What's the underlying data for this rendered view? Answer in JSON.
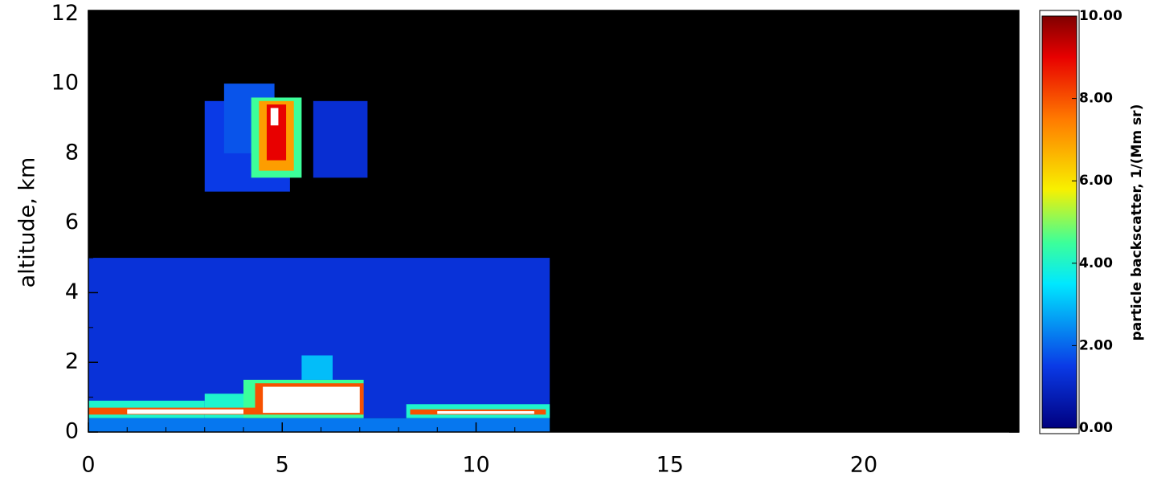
{
  "chart_data": {
    "type": "heatmap",
    "ylabel": "altitude, km",
    "colorbar_label": "particle backscatter, 1/(Mm sr)",
    "xlim": [
      0,
      24
    ],
    "ylim": [
      0,
      12.1
    ],
    "xticks": [
      0,
      5,
      10,
      15,
      20
    ],
    "x_minor_ticks": [
      1,
      2,
      3,
      4,
      6,
      7,
      8,
      9,
      11,
      12,
      13,
      14,
      16,
      17,
      18,
      19,
      21,
      22,
      23,
      24
    ],
    "yticks": [
      0,
      2,
      4,
      6,
      8,
      10,
      12
    ],
    "y_minor_ticks": [
      1,
      3,
      5,
      7,
      9,
      11
    ],
    "clim": [
      0,
      10
    ],
    "cticks": [
      {
        "value": 0,
        "label": "0.00"
      },
      {
        "value": 2,
        "label": "2.00"
      },
      {
        "value": 4,
        "label": "4.00"
      },
      {
        "value": 6,
        "label": "6.00"
      },
      {
        "value": 8,
        "label": "8.00"
      },
      {
        "value": 10,
        "label": "10.00"
      }
    ],
    "colormap": {
      "values": [
        0,
        1.5,
        3.5,
        4.5,
        5.8,
        7.5,
        9,
        10
      ],
      "colors": [
        "#000080",
        "#0a3ae6",
        "#00e8ff",
        "#3cff9a",
        "#f8f000",
        "#ff7a00",
        "#e80000",
        "#800000"
      ]
    },
    "over_color": "#ffffff",
    "background": "#000000",
    "cells": [
      {
        "x": [
          0,
          11.9
        ],
        "y": [
          0,
          0.4
        ],
        "value": 2.2
      },
      {
        "x": [
          0,
          11.9
        ],
        "y": [
          0.4,
          5.0
        ],
        "value": 1.3
      },
      {
        "x": [
          0,
          3
        ],
        "y": [
          0.4,
          0.9
        ],
        "value": 4
      },
      {
        "x": [
          3,
          4
        ],
        "y": [
          0.4,
          1.1
        ],
        "value": 4
      },
      {
        "x": [
          4,
          7.1
        ],
        "y": [
          0.4,
          1.5
        ],
        "value": 4.5
      },
      {
        "x": [
          4.3,
          7.1
        ],
        "y": [
          0.5,
          1.4
        ],
        "value": 8
      },
      {
        "x": [
          4.5,
          7
        ],
        "y": [
          0.55,
          1.3
        ],
        "value": 12
      },
      {
        "x": [
          0,
          4.3
        ],
        "y": [
          0.5,
          0.7
        ],
        "value": 8
      },
      {
        "x": [
          1,
          4
        ],
        "y": [
          0.52,
          0.65
        ],
        "value": 12
      },
      {
        "x": [
          8.2,
          11.9
        ],
        "y": [
          0.4,
          0.8
        ],
        "value": 4
      },
      {
        "x": [
          8.3,
          11.8
        ],
        "y": [
          0.5,
          0.65
        ],
        "value": 8
      },
      {
        "x": [
          9,
          11.5
        ],
        "y": [
          0.52,
          0.6
        ],
        "value": 12
      },
      {
        "x": [
          5.5,
          6.3
        ],
        "y": [
          1.5,
          2.2
        ],
        "value": 3
      },
      {
        "x": [
          3,
          5.2
        ],
        "y": [
          6.9,
          9.5
        ],
        "value": 1.5
      },
      {
        "x": [
          3.5,
          4.8
        ],
        "y": [
          8.0,
          10.0
        ],
        "value": 1.8
      },
      {
        "x": [
          4.2,
          5.5
        ],
        "y": [
          7.3,
          9.6
        ],
        "value": 4.5
      },
      {
        "x": [
          4.4,
          5.3
        ],
        "y": [
          7.5,
          9.5
        ],
        "value": 7
      },
      {
        "x": [
          4.6,
          5.1
        ],
        "y": [
          7.8,
          9.4
        ],
        "value": 9
      },
      {
        "x": [
          4.7,
          4.9
        ],
        "y": [
          8.8,
          9.3
        ],
        "value": 12
      },
      {
        "x": [
          5.8,
          7.2
        ],
        "y": [
          7.3,
          9.5
        ],
        "value": 1.2
      }
    ]
  }
}
